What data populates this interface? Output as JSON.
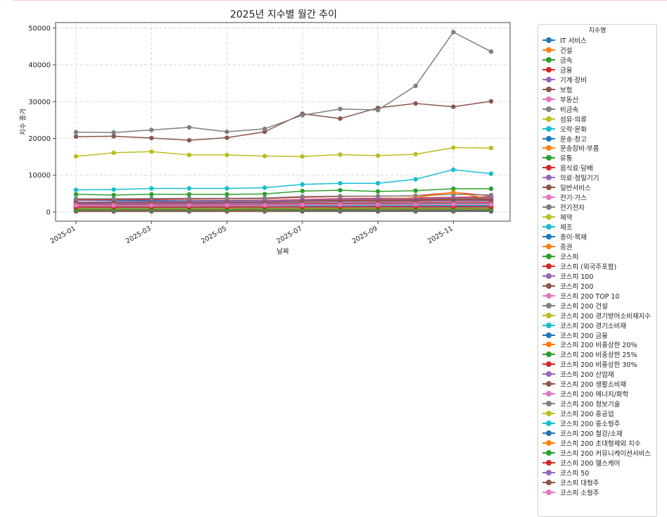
{
  "chart_data": {
    "type": "line",
    "title": "2025년 지수별 월간 추이",
    "xlabel": "날짜",
    "ylabel": "지수 종가",
    "x": [
      "2025-01",
      "2025-02",
      "2025-03",
      "2025-04",
      "2025-05",
      "2025-06",
      "2025-07",
      "2025-08",
      "2025-09",
      "2025-10",
      "2025-11",
      "2025-12"
    ],
    "x_tick_labels": [
      "2025-01",
      "2025-03",
      "2025-05",
      "2025-07",
      "2025-09",
      "2025-11"
    ],
    "y_ticks": [
      0,
      10000,
      20000,
      30000,
      40000,
      50000
    ],
    "ylim": [
      -2500,
      51500
    ],
    "grid": true,
    "legend_title": "지수명",
    "legend_position": "outside-right",
    "series": [
      {
        "name": "IT 서비스",
        "color": "#1f77b4",
        "values": [
          3200,
          3150,
          3100,
          3050,
          3100,
          3150,
          3300,
          3400,
          3350,
          3500,
          3700,
          3600
        ]
      },
      {
        "name": "건설",
        "color": "#ff7f0e",
        "values": [
          100,
          100,
          100,
          100,
          100,
          110,
          120,
          120,
          115,
          120,
          125,
          120
        ]
      },
      {
        "name": "금속",
        "color": "#2ca02c",
        "values": [
          4800,
          4600,
          4800,
          4800,
          4800,
          4900,
          5700,
          5900,
          5600,
          5800,
          6300,
          6300
        ]
      },
      {
        "name": "금융",
        "color": "#d62728",
        "values": [
          2700,
          2750,
          2800,
          2900,
          3000,
          3100,
          3400,
          3600,
          3700,
          3800,
          4000,
          4100
        ]
      },
      {
        "name": "기계·장비",
        "color": "#9467bd",
        "values": [
          1400,
          1400,
          1450,
          1450,
          1500,
          1550,
          1600,
          1650,
          1700,
          1750,
          1800,
          1800
        ]
      },
      {
        "name": "보험",
        "color": "#8c564b",
        "values": [
          20500,
          20600,
          20100,
          19500,
          20200,
          21800,
          26700,
          25400,
          28300,
          29500,
          28600,
          30100
        ]
      },
      {
        "name": "부동산",
        "color": "#e377c2",
        "values": [
          1900,
          1850,
          1900,
          1900,
          1950,
          2000,
          2100,
          2100,
          2150,
          2200,
          2250,
          2200
        ]
      },
      {
        "name": "비금속",
        "color": "#7f7f7f",
        "values": [
          21700,
          21600,
          22300,
          23000,
          21800,
          22600,
          26300,
          28000,
          27700,
          34300,
          48900,
          43600
        ]
      },
      {
        "name": "섬유·의류",
        "color": "#bcbd22",
        "values": [
          15100,
          16100,
          16400,
          15500,
          15500,
          15200,
          15100,
          15600,
          15300,
          15700,
          17500,
          17400
        ]
      },
      {
        "name": "오락·문화",
        "color": "#17becf",
        "values": [
          6000,
          6100,
          6400,
          6400,
          6400,
          6600,
          7500,
          7800,
          7800,
          8900,
          11500,
          10400
        ]
      },
      {
        "name": "운송·창고",
        "color": "#1f77b4",
        "values": [
          1500,
          1500,
          1550,
          1550,
          1600,
          1600,
          1700,
          1700,
          1750,
          1750,
          1800,
          1800
        ]
      },
      {
        "name": "운송장비·부품",
        "color": "#ff7f0e",
        "values": [
          2100,
          2150,
          2200,
          2250,
          2300,
          2350,
          2600,
          2700,
          2800,
          2900,
          3000,
          2900
        ]
      },
      {
        "name": "유통",
        "color": "#2ca02c",
        "values": [
          400,
          400,
          400,
          400,
          400,
          410,
          420,
          420,
          410,
          420,
          430,
          420
        ]
      },
      {
        "name": "음식료·담배",
        "color": "#d62728",
        "values": [
          3300,
          3350,
          3400,
          3500,
          3550,
          3600,
          4000,
          4200,
          4300,
          4400,
          5300,
          4400
        ]
      },
      {
        "name": "의료·정밀기기",
        "color": "#9467bd",
        "values": [
          2700,
          2750,
          2800,
          2850,
          2900,
          3000,
          3200,
          3300,
          3350,
          3400,
          3600,
          3500
        ]
      },
      {
        "name": "일반서비스",
        "color": "#8c564b",
        "values": [
          1100,
          1100,
          1150,
          1150,
          1200,
          1200,
          1250,
          1300,
          1300,
          1350,
          1400,
          1400
        ]
      },
      {
        "name": "전기·가스",
        "color": "#e377c2",
        "values": [
          800,
          800,
          850,
          850,
          900,
          900,
          950,
          1000,
          1000,
          1050,
          1100,
          1050
        ]
      },
      {
        "name": "전기전자",
        "color": "#7f7f7f",
        "values": [
          3600,
          3600,
          3650,
          3700,
          3700,
          3800,
          4200,
          4300,
          4300,
          4400,
          4800,
          4600
        ]
      },
      {
        "name": "제약",
        "color": "#bcbd22",
        "values": [
          900,
          900,
          950,
          950,
          1000,
          1000,
          1050,
          1050,
          1100,
          1100,
          1150,
          1100
        ]
      },
      {
        "name": "제조",
        "color": "#17becf",
        "values": [
          1900,
          1900,
          1950,
          1950,
          2000,
          2050,
          2200,
          2250,
          2300,
          2350,
          2500,
          2450
        ]
      },
      {
        "name": "종이·목재",
        "color": "#1f77b4",
        "values": [
          200,
          200,
          200,
          200,
          210,
          210,
          220,
          220,
          220,
          225,
          230,
          225
        ]
      },
      {
        "name": "증권",
        "color": "#ff7f0e",
        "values": [
          2200,
          2250,
          2300,
          2400,
          2500,
          2600,
          3200,
          3400,
          3500,
          3900,
          5400,
          3500
        ]
      },
      {
        "name": "코스피",
        "color": "#2ca02c",
        "values": [
          2500,
          2550,
          2600,
          2550,
          2600,
          2700,
          3100,
          3200,
          3300,
          3400,
          3500,
          3500
        ]
      },
      {
        "name": "코스피 (외국주포함)",
        "color": "#d62728",
        "values": [
          2400,
          2450,
          2500,
          2450,
          2500,
          2600,
          3000,
          3100,
          3200,
          3300,
          3400,
          3400
        ]
      },
      {
        "name": "코스피 100",
        "color": "#9467bd",
        "values": [
          2700,
          2750,
          2800,
          2750,
          2800,
          2900,
          3300,
          3400,
          3500,
          3600,
          3800,
          3800
        ]
      },
      {
        "name": "코스피 200",
        "color": "#8c564b",
        "values": [
          330,
          335,
          340,
          335,
          340,
          350,
          400,
          410,
          420,
          430,
          450,
          445
        ]
      },
      {
        "name": "코스피 200 TOP 10",
        "color": "#e377c2",
        "values": [
          1600,
          1650,
          1700,
          1650,
          1700,
          1800,
          2100,
          2200,
          2300,
          2400,
          2600,
          2550
        ]
      },
      {
        "name": "코스피 200 건설",
        "color": "#7f7f7f",
        "values": [
          600,
          600,
          620,
          620,
          640,
          650,
          700,
          720,
          730,
          740,
          760,
          750
        ]
      },
      {
        "name": "코스피 200 경기방어소비재지수",
        "color": "#bcbd22",
        "values": [
          1300,
          1300,
          1320,
          1320,
          1350,
          1360,
          1400,
          1420,
          1430,
          1440,
          1460,
          1450
        ]
      },
      {
        "name": "코스피 200 경기소비재",
        "color": "#17becf",
        "values": [
          1500,
          1510,
          1530,
          1540,
          1560,
          1580,
          1700,
          1720,
          1740,
          1760,
          1800,
          1780
        ]
      },
      {
        "name": "코스피 200 금융",
        "color": "#1f77b4",
        "values": [
          900,
          910,
          930,
          950,
          980,
          1000,
          1100,
          1150,
          1170,
          1190,
          1250,
          1230
        ]
      },
      {
        "name": "코스피 200 비중상한 20%",
        "color": "#ff7f0e",
        "values": [
          1800,
          1820,
          1850,
          1830,
          1860,
          1900,
          2200,
          2250,
          2300,
          2350,
          2450,
          2420
        ]
      },
      {
        "name": "코스피 200 비중상한 25%",
        "color": "#2ca02c",
        "values": [
          1850,
          1870,
          1900,
          1880,
          1910,
          1950,
          2250,
          2300,
          2350,
          2400,
          2500,
          2470
        ]
      },
      {
        "name": "코스피 200 비중상한 30%",
        "color": "#d62728",
        "values": [
          1900,
          1920,
          1950,
          1930,
          1960,
          2000,
          2300,
          2350,
          2400,
          2450,
          2550,
          2520
        ]
      },
      {
        "name": "코스피 200 산업재",
        "color": "#9467bd",
        "values": [
          1000,
          1010,
          1030,
          1050,
          1080,
          1100,
          1200,
          1250,
          1280,
          1300,
          1350,
          1330
        ]
      },
      {
        "name": "코스피 200 생활소비재",
        "color": "#8c564b",
        "values": [
          1200,
          1200,
          1210,
          1210,
          1220,
          1230,
          1250,
          1260,
          1270,
          1280,
          1300,
          1290
        ]
      },
      {
        "name": "코스피 200 에너지/화학",
        "color": "#e377c2",
        "values": [
          1400,
          1400,
          1420,
          1420,
          1440,
          1460,
          1500,
          1520,
          1540,
          1560,
          1600,
          1580
        ]
      },
      {
        "name": "코스피 200 정보기술",
        "color": "#7f7f7f",
        "values": [
          1700,
          1720,
          1750,
          1730,
          1760,
          1800,
          2100,
          2150,
          2200,
          2250,
          2400,
          2350
        ]
      },
      {
        "name": "코스피 200 중공업",
        "color": "#bcbd22",
        "values": [
          1100,
          1120,
          1150,
          1180,
          1210,
          1250,
          1350,
          1400,
          1430,
          1460,
          1500,
          1480
        ]
      },
      {
        "name": "코스피 200 중소형주",
        "color": "#17becf",
        "values": [
          1000,
          1000,
          1010,
          1010,
          1020,
          1030,
          1060,
          1070,
          1080,
          1090,
          1100,
          1090
        ]
      },
      {
        "name": "코스피 200 철강/소재",
        "color": "#1f77b4",
        "values": [
          1300,
          1300,
          1310,
          1310,
          1330,
          1350,
          1450,
          1480,
          1500,
          1520,
          1560,
          1540
        ]
      },
      {
        "name": "코스피 200 초대형제외 지수",
        "color": "#ff7f0e",
        "values": [
          900,
          900,
          910,
          910,
          920,
          930,
          960,
          970,
          980,
          990,
          1000,
          990
        ]
      },
      {
        "name": "코스피 200 커뮤니케이션서비스",
        "color": "#2ca02c",
        "values": [
          700,
          700,
          710,
          710,
          720,
          730,
          750,
          760,
          770,
          780,
          790,
          780
        ]
      },
      {
        "name": "코스피 200 헬스케어",
        "color": "#d62728",
        "values": [
          1300,
          1310,
          1320,
          1330,
          1340,
          1350,
          1380,
          1390,
          1400,
          1410,
          1430,
          1420
        ]
      },
      {
        "name": "코스피 50",
        "color": "#9467bd",
        "values": [
          2200,
          2230,
          2260,
          2240,
          2270,
          2320,
          2650,
          2700,
          2750,
          2800,
          2950,
          2900
        ]
      },
      {
        "name": "코스피 대형주",
        "color": "#8c564b",
        "values": [
          2500,
          2530,
          2560,
          2540,
          2570,
          2620,
          2950,
          3000,
          3050,
          3100,
          3250,
          3200
        ]
      },
      {
        "name": "코스피 소형주",
        "color": "#e377c2",
        "values": [
          1800,
          1810,
          1830,
          1830,
          1850,
          1870,
          1950,
          1970,
          1990,
          2010,
          2050,
          2030
        ]
      }
    ]
  }
}
